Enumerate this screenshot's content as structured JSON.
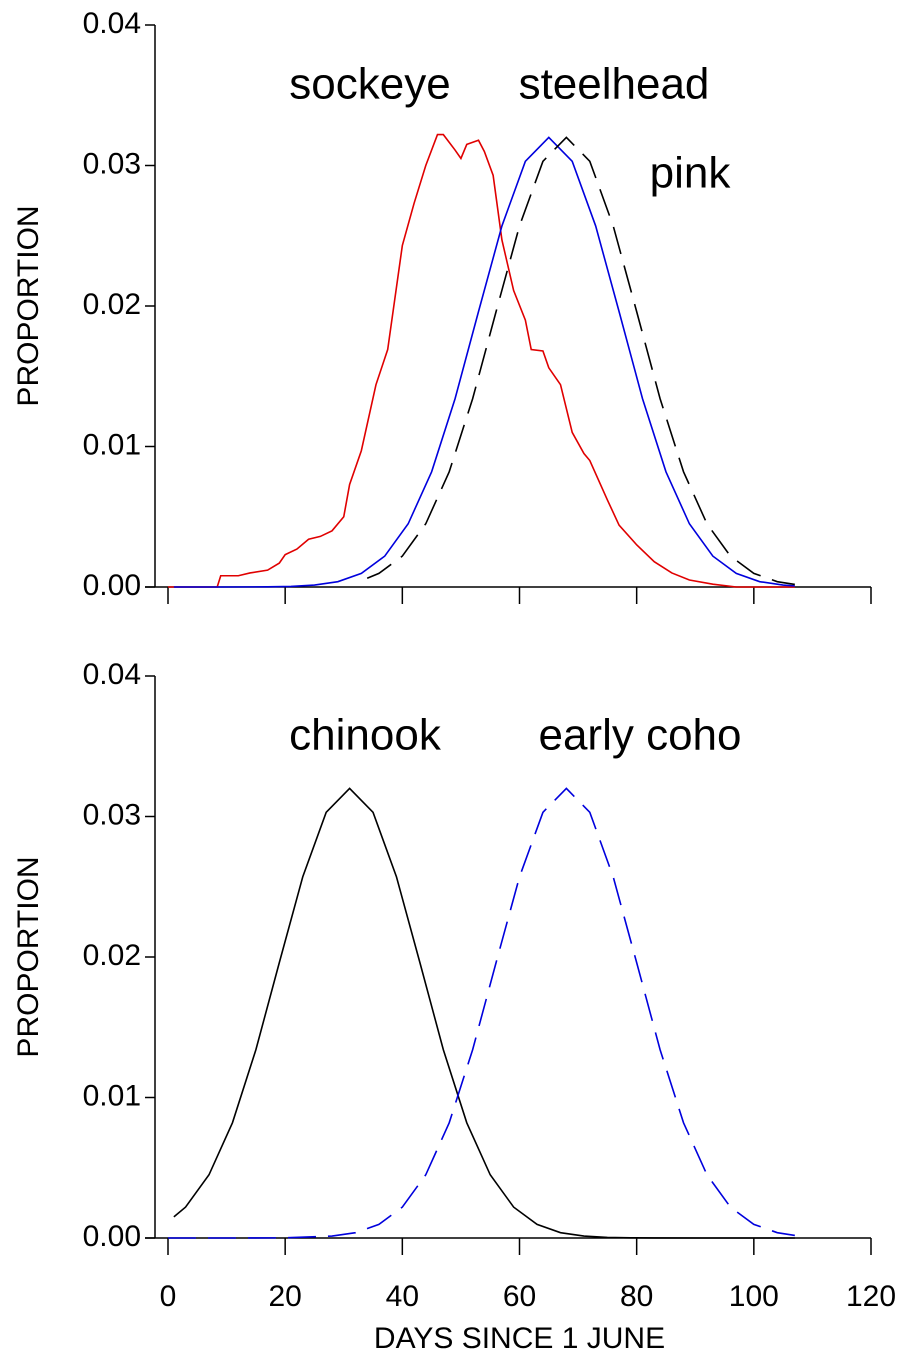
{
  "chart_data": [
    {
      "type": "line",
      "ylabel": "PROPORTION",
      "xlim": [
        0,
        120
      ],
      "xticks": [
        0,
        20,
        40,
        60,
        80,
        100,
        120
      ],
      "ylim": [
        0,
        0.04
      ],
      "yticks": [
        {
          "value": 0,
          "label": "0.00"
        },
        {
          "value": 0.01,
          "label": "0.01"
        },
        {
          "value": 0.02,
          "label": "0.02"
        },
        {
          "value": 0.03,
          "label": "0.03"
        },
        {
          "value": 0.04,
          "label": "0.04"
        }
      ],
      "series": [
        {
          "name": "sockeye",
          "color": "#e00000",
          "style": "solid",
          "x": [
            0,
            8.4,
            9,
            12,
            14,
            17,
            19,
            20,
            22,
            24,
            26,
            28,
            30,
            31,
            33,
            35.5,
            37.5,
            40,
            42,
            44,
            46,
            47,
            49,
            50,
            51,
            53,
            54,
            55.5,
            57,
            59,
            61,
            62,
            64,
            65,
            67,
            69,
            71,
            72,
            75,
            77,
            80,
            83,
            86,
            89,
            93,
            97,
            107
          ],
          "values": [
            0,
            0,
            0.0008,
            0.0008,
            0.001,
            0.0012,
            0.0017,
            0.0023,
            0.0027,
            0.0034,
            0.0036,
            0.004,
            0.005,
            0.0073,
            0.0097,
            0.0144,
            0.0169,
            0.0243,
            0.0273,
            0.03,
            0.0322,
            0.0322,
            0.0311,
            0.0305,
            0.0315,
            0.0318,
            0.031,
            0.0293,
            0.0247,
            0.0211,
            0.019,
            0.0169,
            0.0168,
            0.0156,
            0.0144,
            0.011,
            0.0095,
            0.009,
            0.0062,
            0.0044,
            0.003,
            0.0018,
            0.001,
            0.0005,
            0.0002,
            0,
            0
          ]
        },
        {
          "name": "steelhead",
          "color": "#0000dd",
          "style": "solid",
          "x": [
            1,
            9,
            17,
            21,
            25,
            29,
            33,
            37,
            41,
            45,
            49,
            53,
            57,
            61,
            65,
            69,
            73,
            77,
            81,
            85,
            89,
            93,
            97,
            101,
            105,
            107
          ],
          "values": [
            0,
            0,
            1.2e-05,
            4.3e-05,
            0.00014,
            0.00038,
            0.00097,
            0.0022,
            0.0045,
            0.0082,
            0.0134,
            0.0196,
            0.0257,
            0.0303,
            0.032,
            0.0303,
            0.0257,
            0.0196,
            0.0134,
            0.0082,
            0.0045,
            0.0022,
            0.00097,
            0.00038,
            0.00014,
            7.8e-05
          ]
        },
        {
          "name": "pink",
          "color": "#000000",
          "style": "dashed",
          "x": [
            34,
            36,
            40,
            44,
            48,
            52,
            56,
            60,
            64,
            68,
            72,
            76,
            80,
            84,
            88,
            92,
            96,
            100,
            104,
            107
          ],
          "values": [
            0.00062,
            0.00097,
            0.0022,
            0.0045,
            0.0082,
            0.0134,
            0.0196,
            0.0257,
            0.0303,
            0.032,
            0.0303,
            0.0257,
            0.0196,
            0.0134,
            0.0082,
            0.0045,
            0.0022,
            0.00097,
            0.00038,
            0.00018
          ]
        }
      ]
    },
    {
      "type": "line",
      "ylabel": "PROPORTION",
      "xlabel": "DAYS SINCE 1 JUNE",
      "xlim": [
        0,
        120
      ],
      "xticks": [
        0,
        20,
        40,
        60,
        80,
        100,
        120
      ],
      "ylim": [
        0,
        0.04
      ],
      "yticks": [
        {
          "value": 0,
          "label": "0.00"
        },
        {
          "value": 0.01,
          "label": "0.01"
        },
        {
          "value": 0.02,
          "label": "0.02"
        },
        {
          "value": 0.03,
          "label": "0.03"
        },
        {
          "value": 0.04,
          "label": "0.04"
        }
      ],
      "series": [
        {
          "name": "chinook",
          "color": "#000000",
          "style": "solid",
          "x": [
            1,
            3,
            7,
            11,
            15,
            19,
            23,
            27,
            31,
            35,
            39,
            43,
            47,
            51,
            55,
            59,
            63,
            67,
            71,
            75,
            79,
            83,
            91,
            107
          ],
          "values": [
            0.0015,
            0.0022,
            0.0045,
            0.0082,
            0.0134,
            0.0196,
            0.0257,
            0.0303,
            0.032,
            0.0303,
            0.0257,
            0.0196,
            0.0134,
            0.0082,
            0.0045,
            0.0022,
            0.00097,
            0.00038,
            0.00014,
            4.3e-05,
            1.2e-05,
            3e-06,
            0,
            0
          ]
        },
        {
          "name": "early coho",
          "color": "#0000dd",
          "style": "dashed",
          "x": [
            0,
            12,
            20,
            28,
            32,
            36,
            40,
            44,
            48,
            52,
            56,
            60,
            64,
            68,
            72,
            76,
            80,
            84,
            88,
            92,
            96,
            100,
            104,
            107
          ],
          "values": [
            0,
            0,
            1.2e-05,
            0.00014,
            0.00038,
            0.00097,
            0.0022,
            0.0045,
            0.0082,
            0.0134,
            0.0196,
            0.0257,
            0.0303,
            0.032,
            0.0303,
            0.0257,
            0.0196,
            0.0134,
            0.0082,
            0.0045,
            0.0022,
            0.00097,
            0.00038,
            0.00018
          ]
        }
      ]
    }
  ]
}
